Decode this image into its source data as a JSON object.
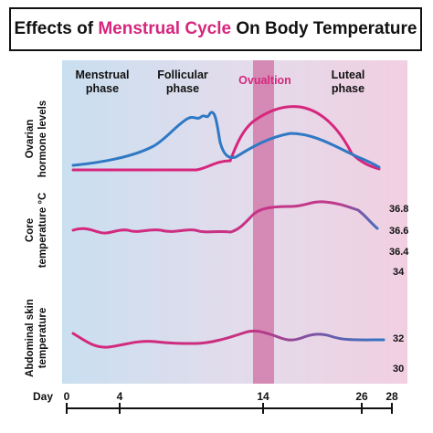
{
  "title": {
    "part1": "Effects of ",
    "highlight": "Menstrual Cycle",
    "part2": " On Body Temperature"
  },
  "phases": {
    "menstrual": [
      "Menstrual",
      "phase"
    ],
    "follicular": [
      "Follicular",
      "phase"
    ],
    "ovulation": "Ovualtion",
    "luteal": [
      "Luteal",
      "phase"
    ]
  },
  "y_labels": {
    "hormone": [
      "Ovarian",
      "hormone levels"
    ],
    "core": [
      "Core",
      "temperature °C"
    ],
    "skin": [
      "Abdominal skin",
      "temperature"
    ]
  },
  "core_ticks": [
    "36.8",
    "36.6",
    "36.4",
    "34"
  ],
  "skin_ticks": [
    "32",
    "30"
  ],
  "day_axis": {
    "label": "Day",
    "ticks": [
      "0",
      "4",
      "14",
      "26",
      "28"
    ]
  },
  "colors": {
    "magenta": "#d6267d",
    "blue": "#2f78c4",
    "ovulation_band": "#d27aac",
    "bg_left": "#c9dff0",
    "bg_right": "#f1cfe1"
  }
}
